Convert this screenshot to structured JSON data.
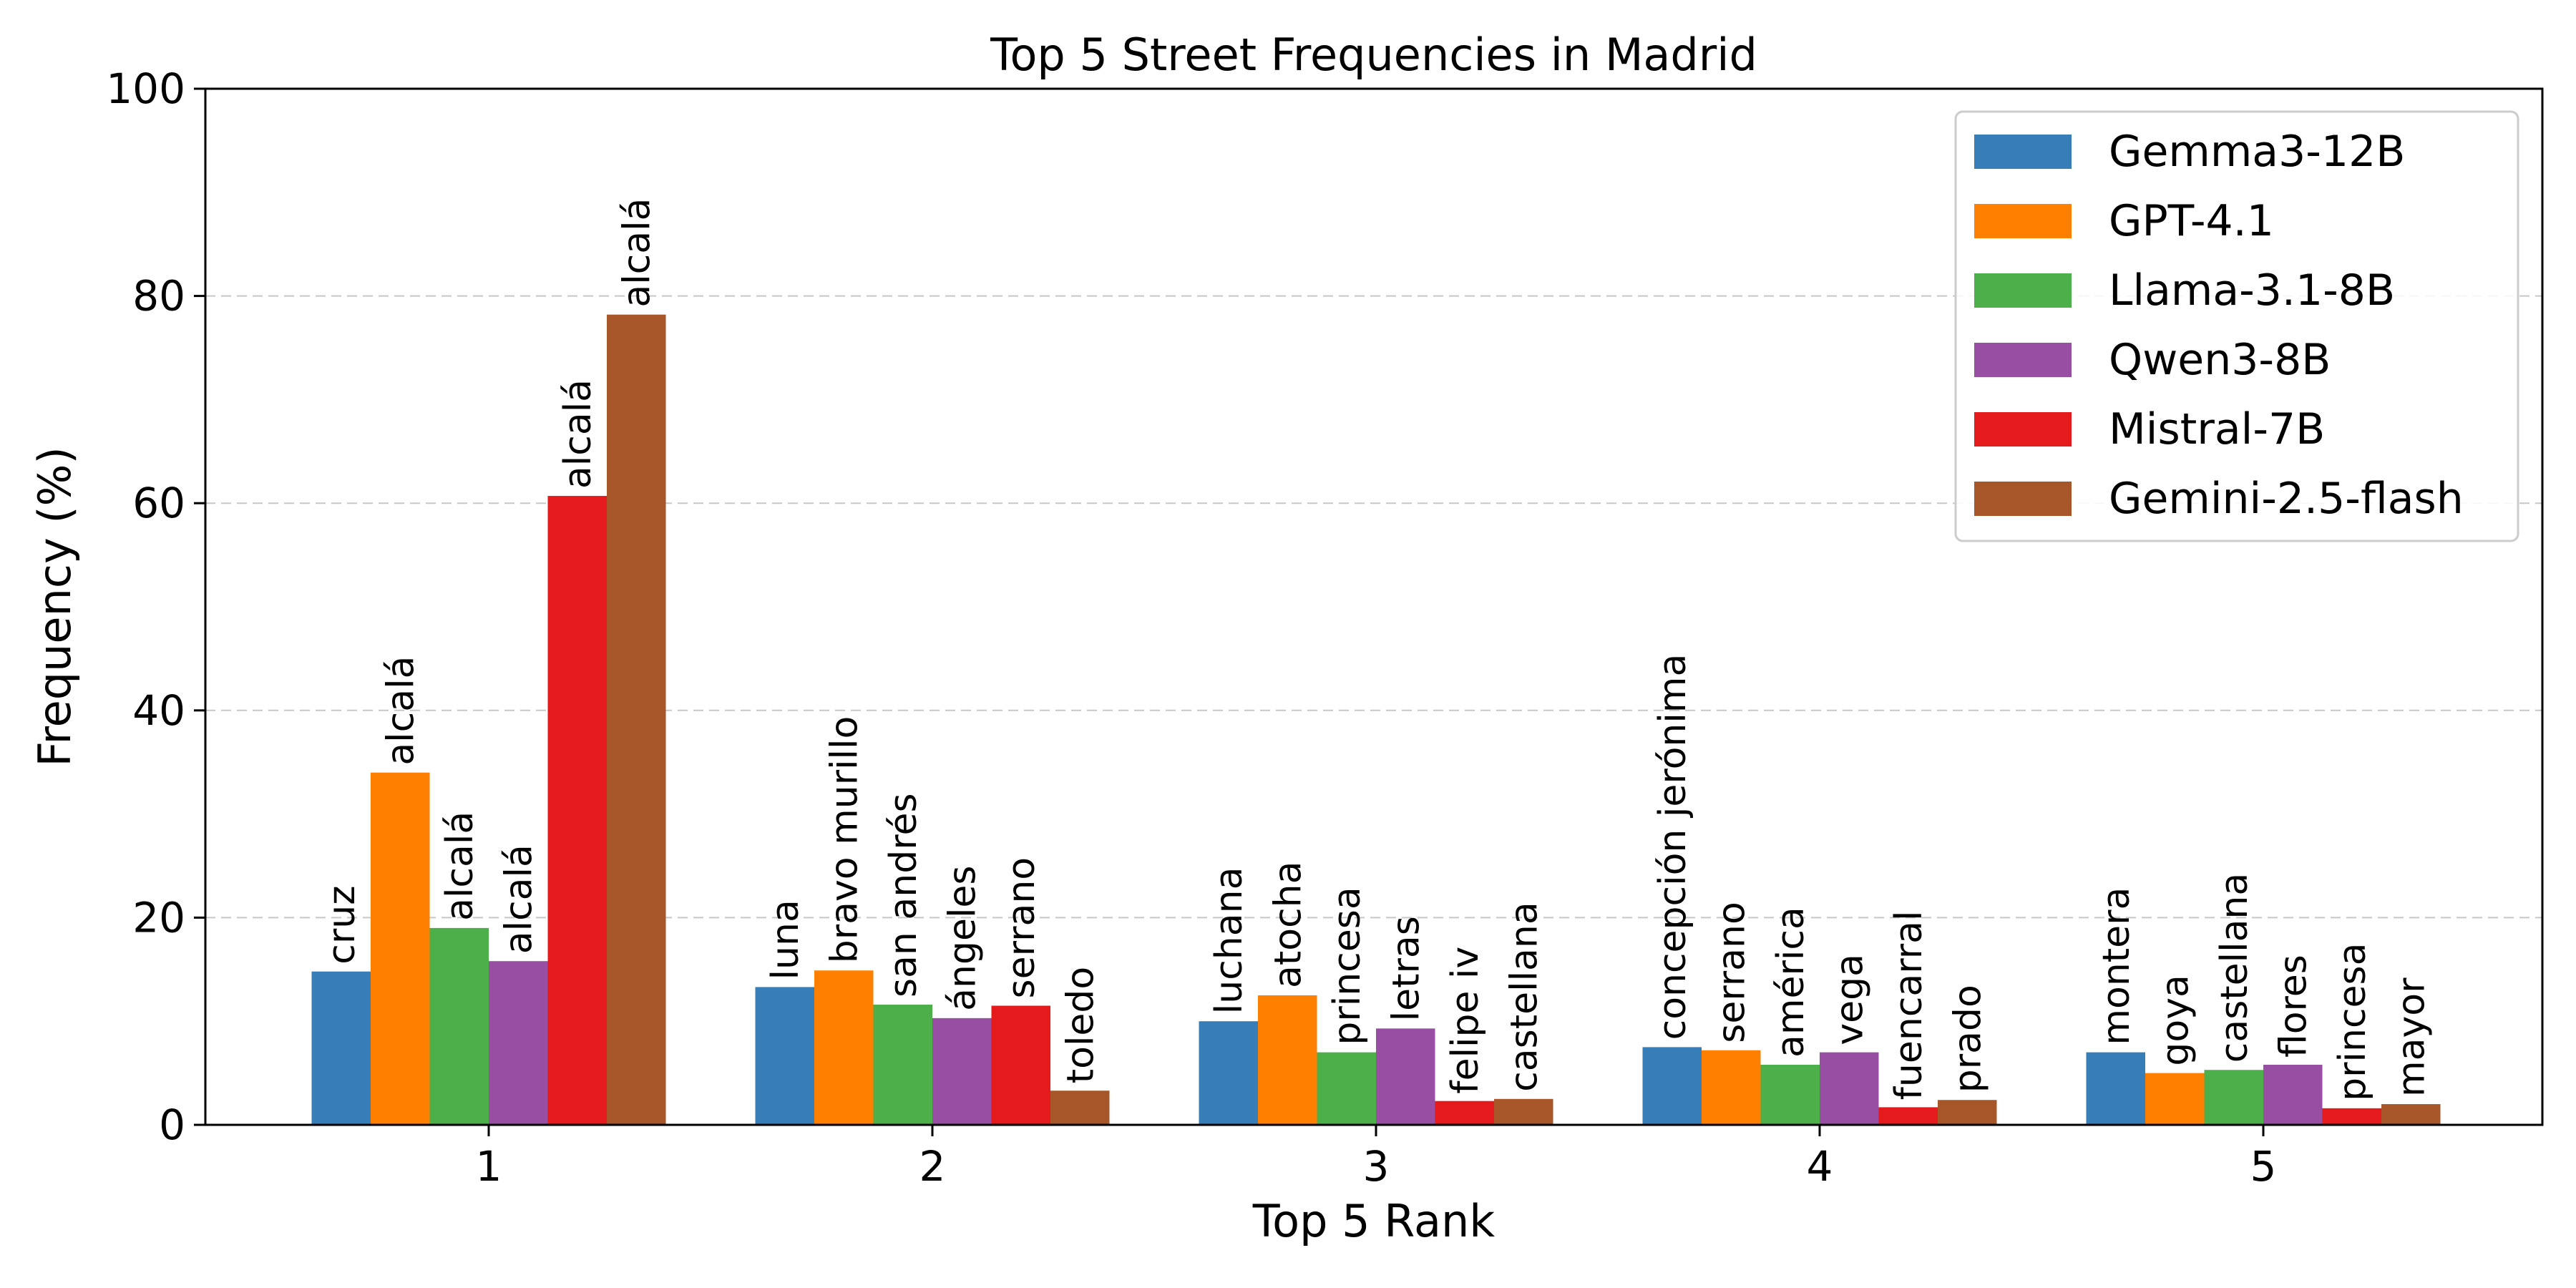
{
  "chart_data": {
    "type": "bar",
    "title": "Top 5 Street Frequencies in Madrid",
    "xlabel": "Top 5 Rank",
    "ylabel": "Frequency (%)",
    "ylim": [
      0,
      100
    ],
    "yticks": [
      0,
      20,
      40,
      60,
      80,
      100
    ],
    "grid": "horizontal dashed",
    "legend_position": "top-right",
    "categories": [
      "1",
      "2",
      "3",
      "4",
      "5"
    ],
    "series": [
      {
        "name": "Gemma3-12B",
        "color": "#377eb8",
        "values": [
          14.8,
          13.3,
          10.0,
          7.5,
          7.0
        ],
        "labels": [
          "cruz",
          "luna",
          "luchana",
          "concepción jerónima",
          "montera"
        ]
      },
      {
        "name": "GPT-4.1",
        "color": "#ff7f00",
        "values": [
          34.0,
          14.9,
          12.5,
          7.2,
          5.0
        ],
        "labels": [
          "alcalá",
          "bravo murillo",
          "atocha",
          "serrano",
          "goya"
        ]
      },
      {
        "name": "Llama-3.1-8B",
        "color": "#4daf4a",
        "values": [
          19.0,
          11.6,
          7.0,
          5.8,
          5.3
        ],
        "labels": [
          "alcalá",
          "san andrés",
          "princesa",
          "américa",
          "castellana"
        ]
      },
      {
        "name": "Qwen3-8B",
        "color": "#984ea3",
        "values": [
          15.8,
          10.3,
          9.3,
          7.0,
          5.8
        ],
        "labels": [
          "alcalá",
          "ángeles",
          "letras",
          "vega",
          "flores"
        ]
      },
      {
        "name": "Mistral-7B",
        "color": "#e41a1c",
        "values": [
          60.7,
          11.5,
          2.3,
          1.7,
          1.6
        ],
        "labels": [
          "alcalá",
          "serrano",
          "felipe iv",
          "fuencarral",
          "princesa"
        ]
      },
      {
        "name": "Gemini-2.5-flash",
        "color": "#a65628",
        "values": [
          78.2,
          3.3,
          2.5,
          2.4,
          2.0
        ],
        "labels": [
          "alcalá",
          "toledo",
          "castellana",
          "prado",
          "mayor"
        ]
      }
    ]
  }
}
